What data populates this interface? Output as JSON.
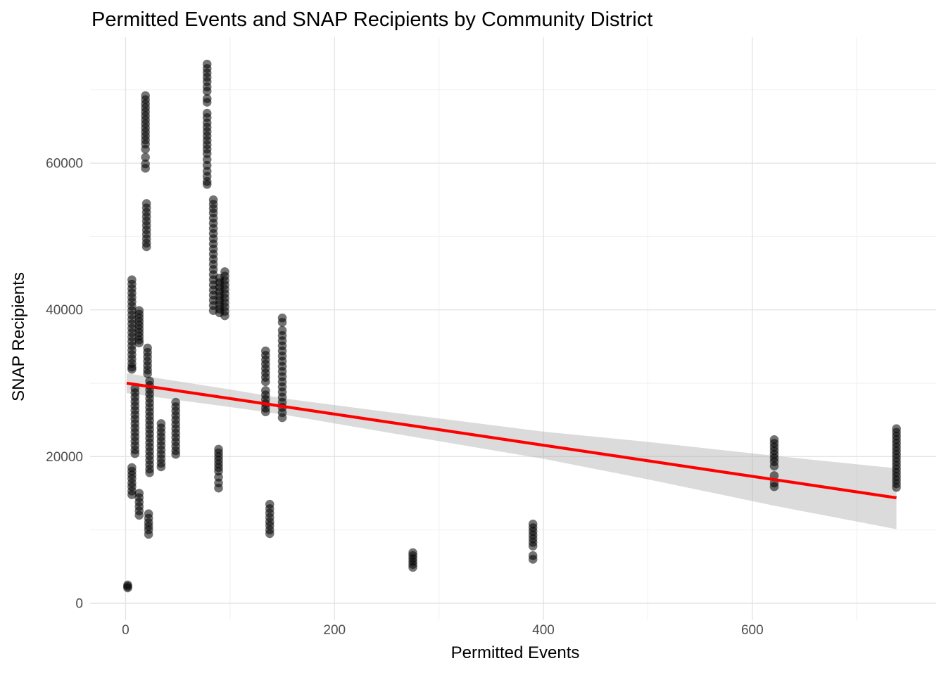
{
  "colors": {
    "background": "#FFFFFF",
    "grid_major": "#E4E4E4",
    "grid_minor": "#F2F2F2",
    "tick_text": "#4D4D4D",
    "title_text": "#000000",
    "point": "#000000",
    "trend": "#FF0000",
    "ribbon": "#A9A9A9"
  },
  "chart_data": {
    "type": "scatter",
    "title": "Permitted Events and SNAP Recipients by Community District",
    "xlabel": "Permitted Events",
    "ylabel": "SNAP Recipients",
    "x_ticks": [
      0,
      200,
      400,
      600
    ],
    "x_minor_gridlines": [
      100,
      300,
      500,
      700
    ],
    "y_ticks": [
      0,
      20000,
      40000,
      60000
    ],
    "y_minor_gridlines": [
      10000,
      30000,
      50000,
      70000
    ],
    "xlim": [
      -34,
      776
    ],
    "ylim": [
      -2300,
      77160
    ],
    "grid": true,
    "legend": "none",
    "point_alpha": 0.55,
    "point_radius": 6.3,
    "trend_line": {
      "x": [
        1,
        738
      ],
      "y": [
        30010,
        14380
      ]
    },
    "confidence_band": {
      "alpha": 0.42,
      "x": [
        1,
        100,
        150,
        250,
        400,
        500,
        621,
        738
      ],
      "top": [
        31350,
        29150,
        27950,
        26100,
        23400,
        22000,
        20100,
        18400
      ],
      "bottom": [
        28650,
        26750,
        25750,
        23300,
        19700,
        16900,
        13300,
        10100
      ]
    },
    "clusters": [
      {
        "x": 2,
        "ys": [
          2100,
          2300,
          2500
        ]
      },
      {
        "x": 6,
        "ys": [
          44100,
          43500,
          42900,
          42300,
          41700,
          41100,
          40500,
          39900,
          39300,
          38700,
          38100,
          37500,
          36900,
          36300,
          35700,
          35100,
          34500,
          33900,
          33300,
          32700,
          32200,
          31900
        ]
      },
      {
        "x": 6,
        "ys": [
          18500,
          18000,
          17500,
          17000,
          16400,
          15900,
          15300,
          14800
        ]
      },
      {
        "x": 9,
        "ys": [
          29300,
          28700,
          28100,
          27500,
          26900,
          26300,
          25700,
          25100,
          24500,
          23900,
          23300,
          22700,
          22100,
          21500,
          20900,
          20400
        ]
      },
      {
        "x": 13,
        "ys": [
          39900,
          39400,
          38900,
          38400,
          37900,
          37400,
          36900,
          36400,
          35900,
          35500
        ]
      },
      {
        "x": 13,
        "ys": [
          15000,
          14400,
          13800,
          13200,
          12600,
          12000
        ]
      },
      {
        "x": 19,
        "ys": [
          69200,
          68650,
          68100,
          67550,
          67000,
          66450,
          65900,
          65350,
          64800,
          64250,
          63700,
          63150,
          62600,
          61900,
          60800,
          59900,
          59300
        ]
      },
      {
        "x": 20,
        "ys": [
          54500,
          53900,
          53300,
          52700,
          52100,
          51500,
          50900,
          50300,
          49700,
          49100,
          48600
        ]
      },
      {
        "x": 21,
        "ys": [
          34800,
          34200,
          33600,
          33000,
          32400,
          31800,
          31300
        ]
      },
      {
        "x": 23,
        "ys": [
          30300,
          29700,
          29100,
          28500,
          27900,
          27300,
          26700,
          26100,
          25500,
          24900,
          24300,
          23700,
          23100,
          22500,
          21900,
          21300,
          20700,
          20100,
          19500,
          18900,
          18300,
          17800
        ]
      },
      {
        "x": 22,
        "ys": [
          12200,
          11600,
          11000,
          10500,
          10000,
          9400
        ]
      },
      {
        "x": 34,
        "ys": [
          24500,
          23900,
          23300,
          22700,
          22100,
          21500,
          20900,
          20300,
          19700,
          19100,
          18600
        ]
      },
      {
        "x": 48,
        "ys": [
          27400,
          26800,
          26200,
          25600,
          25000,
          24400,
          23800,
          23200,
          22600,
          22000,
          21400,
          20800,
          20300
        ]
      },
      {
        "x": 78,
        "ys": [
          73500,
          72900,
          72300,
          71700,
          71100,
          70400,
          69800,
          68800,
          68300,
          66800,
          66200,
          65500,
          64900,
          64300,
          63700,
          63100,
          62500,
          61900,
          61300,
          60500,
          59700,
          58900,
          58200,
          57500,
          57100
        ]
      },
      {
        "x": 84,
        "ys": [
          55000,
          54400,
          53800,
          53200,
          52500,
          51800,
          51100,
          50400,
          49700,
          49000,
          48300,
          47600,
          46900,
          46200,
          45500,
          44800,
          44100,
          43400,
          42700,
          42000,
          41300,
          40600,
          39900
        ]
      },
      {
        "x": 90,
        "ys": [
          44300,
          43700,
          43100,
          42500,
          41900,
          41300,
          40700,
          40100,
          39600
        ]
      },
      {
        "x": 95,
        "ys": [
          45200,
          44600,
          44000,
          43400,
          42800,
          42200,
          41600,
          41000,
          40400,
          39800,
          39200
        ]
      },
      {
        "x": 89,
        "ys": [
          21000,
          20500,
          20000,
          19500,
          19000,
          18500,
          18000,
          17200,
          16400,
          15700
        ]
      },
      {
        "x": 134,
        "ys": [
          34400,
          33800,
          33200,
          32600,
          32000,
          31400,
          30800,
          30200,
          29000,
          28400,
          27800,
          27200,
          26600,
          26100
        ]
      },
      {
        "x": 138,
        "ys": [
          13500,
          12900,
          12300,
          11700,
          11100,
          10600,
          10000,
          9500
        ]
      },
      {
        "x": 150,
        "ys": [
          38900,
          38300,
          37200,
          36500,
          35800,
          35100,
          34400,
          33700,
          33000,
          32300,
          31600,
          30900,
          30200,
          29500,
          28800,
          28100,
          27400,
          26700,
          26000,
          25300
        ]
      },
      {
        "x": 275,
        "ys": [
          6900,
          6500,
          6100,
          5700,
          5300,
          4900
        ]
      },
      {
        "x": 390,
        "ys": [
          10800,
          10300,
          9800,
          9300,
          8800,
          8300,
          7800,
          6500,
          6000
        ]
      },
      {
        "x": 621,
        "ys": [
          22300,
          21800,
          21300,
          20800,
          20300,
          19800,
          19300,
          18700,
          17400,
          16400,
          15900
        ]
      },
      {
        "x": 738,
        "ys": [
          23800,
          23300,
          22800,
          22300,
          21800,
          21300,
          20800,
          20300,
          19800,
          19300,
          18800,
          18300,
          17800,
          17300,
          16800,
          16300,
          15800
        ]
      }
    ]
  }
}
